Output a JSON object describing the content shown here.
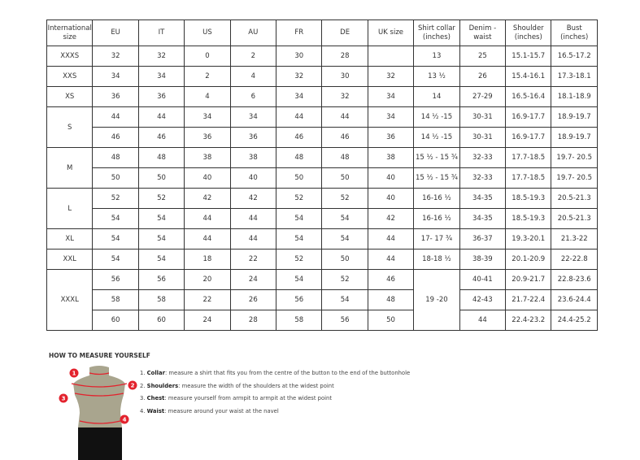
{
  "headers": [
    "International size",
    "EU",
    "IT",
    "US",
    "AU",
    "FR",
    "DE",
    "UK size",
    "Shirt collar (inches)",
    "Denim - waist",
    "Shoulder (inches)",
    "Bust (inches)"
  ],
  "groups": [
    {
      "size": "XXXS",
      "rows": [
        [
          "32",
          "32",
          "0",
          "2",
          "30",
          "28",
          "",
          "13",
          "25",
          "15.1-15.7",
          "16.5-17.2"
        ]
      ]
    },
    {
      "size": "XXS",
      "rows": [
        [
          "34",
          "34",
          "2",
          "4",
          "32",
          "30",
          "32",
          "13 ½",
          "26",
          "15.4-16.1",
          "17.3-18.1"
        ]
      ]
    },
    {
      "size": "XS",
      "rows": [
        [
          "36",
          "36",
          "4",
          "6",
          "34",
          "32",
          "34",
          "14",
          "27-29",
          "16.5-16.4",
          "18.1-18.9"
        ]
      ]
    },
    {
      "size": "S",
      "rows": [
        [
          "44",
          "44",
          "34",
          "34",
          "44",
          "44",
          "34",
          "14 ½ -15",
          "30-31",
          "16.9-17.7",
          "18.9-19.7"
        ],
        [
          "46",
          "46",
          "36",
          "36",
          "46",
          "46",
          "36",
          "14 ½ -15",
          "30-31",
          "16.9-17.7",
          "18.9-19.7"
        ]
      ]
    },
    {
      "size": "M",
      "rows": [
        [
          "48",
          "48",
          "38",
          "38",
          "48",
          "48",
          "38",
          "15 ½ - 15 ¾",
          "32-33",
          "17.7-18.5",
          "19.7- 20.5"
        ],
        [
          "50",
          "50",
          "40",
          "40",
          "50",
          "50",
          "40",
          "15 ½ - 15 ¾",
          "32-33",
          "17.7-18.5",
          "19.7- 20.5"
        ]
      ]
    },
    {
      "size": "L",
      "rows": [
        [
          "52",
          "52",
          "42",
          "42",
          "52",
          "52",
          "40",
          "16-16 ½",
          "34-35",
          "18.5-19.3",
          "20.5-21.3"
        ],
        [
          "54",
          "54",
          "44",
          "44",
          "54",
          "54",
          "42",
          "16-16 ½",
          "34-35",
          "18.5-19.3",
          "20.5-21.3"
        ]
      ]
    },
    {
      "size": "XL",
      "rows": [
        [
          "54",
          "54",
          "44",
          "44",
          "54",
          "54",
          "44",
          "17- 17 ¾",
          "36-37",
          "19.3-20.1",
          "21.3-22"
        ]
      ]
    },
    {
      "size": "XXL",
      "rows": [
        [
          "54",
          "54",
          "18",
          "22",
          "52",
          "50",
          "44",
          "18-18 ½",
          "38-39",
          "20.1-20.9",
          "22-22.8"
        ]
      ]
    },
    {
      "size": "XXXL",
      "collar": "19 -20",
      "rows": [
        [
          "56",
          "56",
          "20",
          "24",
          "54",
          "52",
          "46",
          null,
          "40-41",
          "20.9-21.7",
          "22.8-23.6"
        ],
        [
          "58",
          "58",
          "22",
          "26",
          "56",
          "54",
          "48",
          null,
          "42-43",
          "21.7-22.4",
          "23.6-24.4"
        ],
        [
          "60",
          "60",
          "24",
          "28",
          "58",
          "56",
          "50",
          null,
          "44",
          "22.4-23.2",
          "24.4-25.2"
        ]
      ]
    }
  ],
  "howto": {
    "title": "HOW TO MEASURE YOURSELF",
    "steps": [
      {
        "num": "1.",
        "label": "Collar",
        "text": ": measure a shirt that fits you from the centre of the button to the end of the buttonhole"
      },
      {
        "num": "2.",
        "label": "Shoulders",
        "text": ": measure the width of the shoulders at the widest point"
      },
      {
        "num": "3.",
        "label": "Chest",
        "text": ": measure yourself from armpit to armpit at the widest point"
      },
      {
        "num": "4.",
        "label": "Waist",
        "text": ": measure around your waist at the navel"
      }
    ],
    "markers": [
      "1",
      "2",
      "3",
      "4"
    ],
    "accent": "#e3222d"
  }
}
